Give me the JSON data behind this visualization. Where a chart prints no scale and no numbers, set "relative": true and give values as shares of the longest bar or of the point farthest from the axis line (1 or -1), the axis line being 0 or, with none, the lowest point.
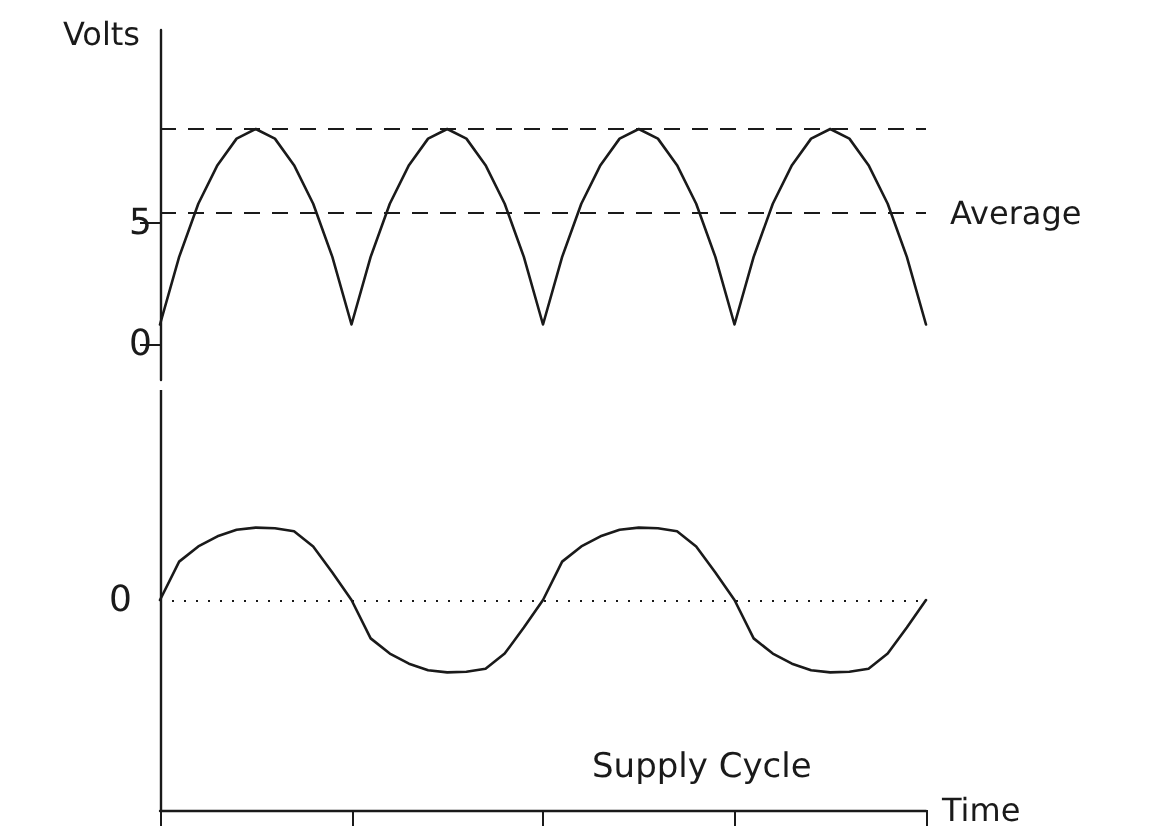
{
  "chart_data": [
    {
      "type": "line",
      "ylabel": "Volts",
      "ylim": [
        -1.5,
        13
      ],
      "yticks": [
        0,
        5
      ],
      "tick_labels": "y",
      "marker": "none",
      "line_style": "solid",
      "categories": [
        null,
        null,
        null,
        null,
        null,
        null,
        null,
        null,
        null,
        null,
        null,
        null,
        null,
        null,
        null,
        null,
        null,
        null,
        null,
        null,
        null,
        null,
        null,
        null,
        null,
        null,
        null,
        null,
        null,
        null,
        null,
        null,
        null,
        null,
        null,
        null,
        null,
        null,
        null,
        null,
        null
      ],
      "series": [
        {
          "color": "#1a1a1a",
          "values": [
            0.8,
            3.6,
            5.8,
            7.4,
            8.5,
            8.9,
            8.5,
            7.4,
            5.8,
            3.6,
            0.8,
            3.6,
            5.8,
            7.4,
            8.5,
            8.9,
            8.5,
            7.4,
            5.8,
            3.6,
            0.8,
            3.6,
            5.8,
            7.4,
            8.5,
            8.9,
            8.5,
            7.4,
            5.8,
            3.6,
            0.8,
            3.6,
            5.8,
            7.4,
            8.5,
            8.9,
            8.5,
            7.4,
            5.8,
            3.6,
            0.8
          ]
        }
      ],
      "ref_lines": [
        {
          "axis": "y",
          "value": 8.9,
          "label": null,
          "line_style": "dashed",
          "color": "#1a1a1a"
        },
        {
          "axis": "y",
          "value": 5.4,
          "label": "Average",
          "line_style": "dashed",
          "color": "#1a1a1a"
        }
      ]
    },
    {
      "type": "line",
      "relative": true,
      "xlabel": "Time",
      "tick_labels": false,
      "marker": "none",
      "line_style": "solid",
      "categories": [
        null,
        null,
        null,
        null,
        null,
        null,
        null,
        null,
        null,
        null,
        null,
        null,
        null,
        null,
        null,
        null,
        null,
        null,
        null,
        null,
        null,
        null,
        null,
        null,
        null,
        null,
        null,
        null,
        null,
        null,
        null,
        null,
        null,
        null,
        null,
        null,
        null,
        null,
        null,
        null,
        null
      ],
      "series": [
        {
          "color": "#1a1a1a",
          "values": [
            0,
            0.53,
            0.74,
            0.88,
            0.97,
            1,
            0.99,
            0.95,
            0.74,
            0.38,
            0,
            -0.53,
            -0.74,
            -0.88,
            -0.97,
            -1,
            -0.99,
            -0.95,
            -0.74,
            -0.38,
            0,
            0.53,
            0.74,
            0.88,
            0.97,
            1,
            0.99,
            0.95,
            0.74,
            0.38,
            0,
            -0.53,
            -0.74,
            -0.88,
            -0.97,
            -1,
            -0.99,
            -0.95,
            -0.74,
            -0.38,
            0
          ]
        }
      ],
      "ref_lines": [
        {
          "axis": "y",
          "value": 0,
          "label": "0",
          "line_style": "dotted",
          "color": "#1a1a1a"
        }
      ],
      "annotations": [
        "Supply Cycle"
      ]
    }
  ]
}
